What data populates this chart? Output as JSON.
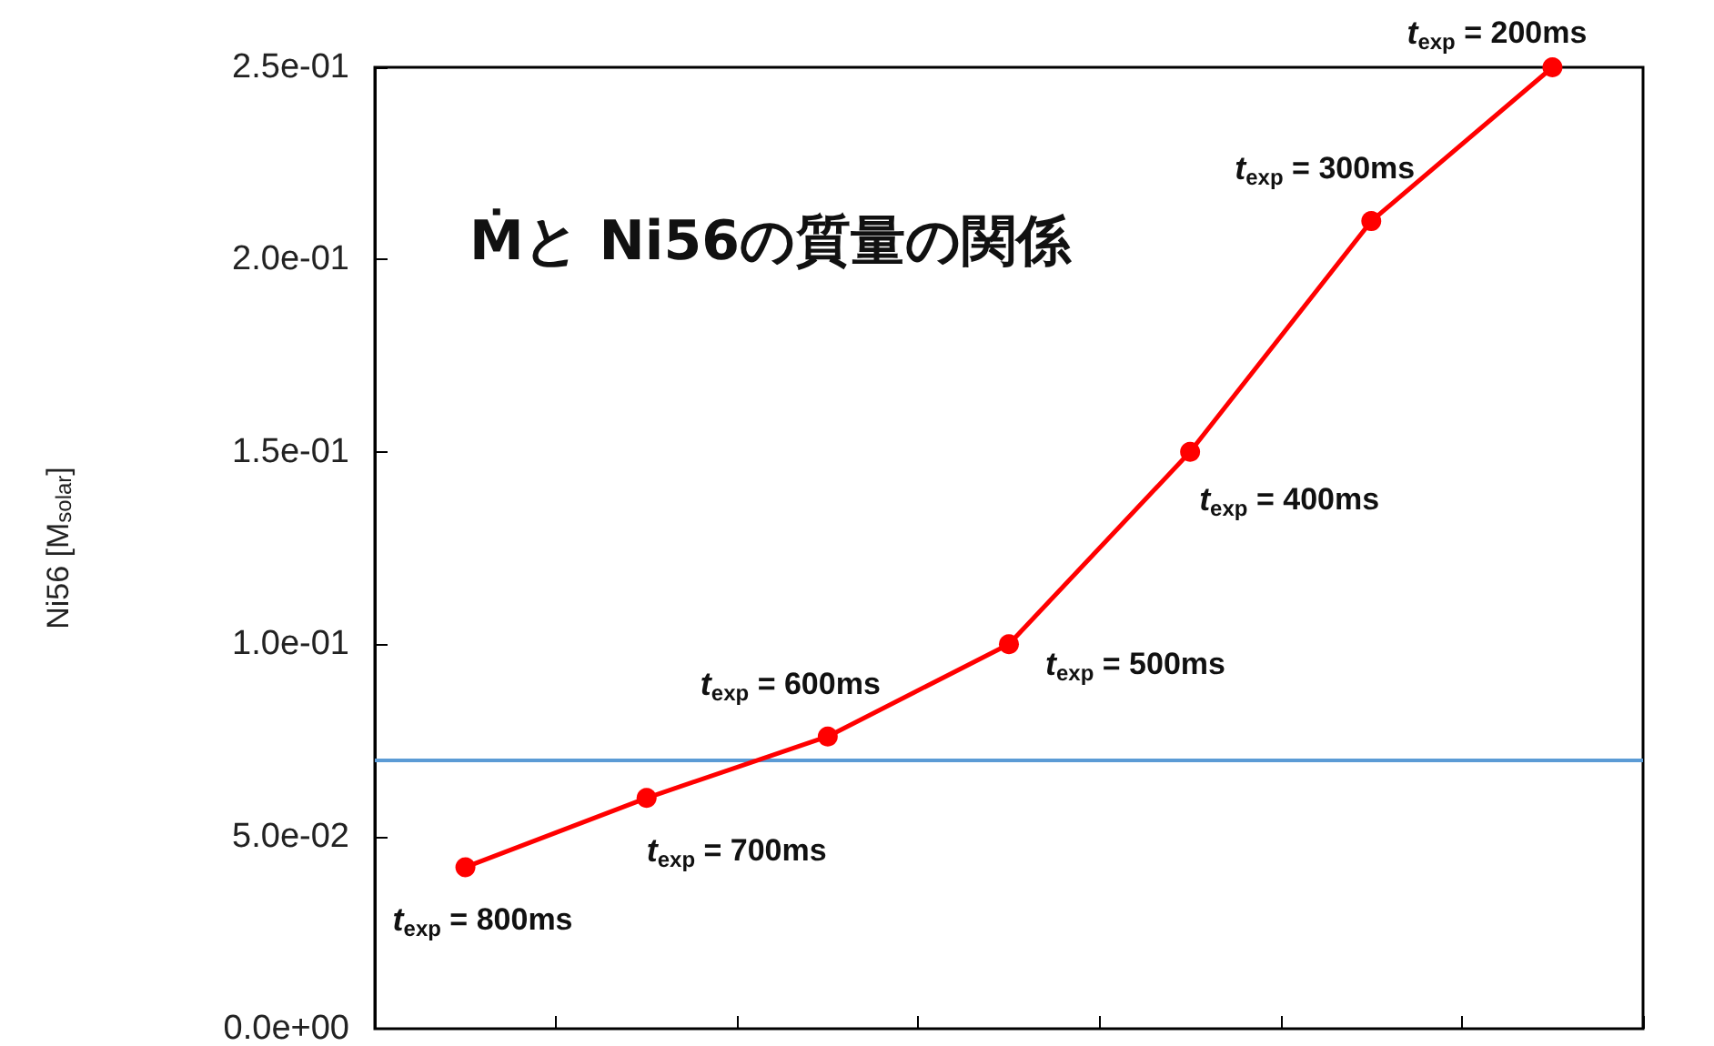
{
  "chart_data": {
    "type": "line",
    "ylabel": "Ni56 [M$_{solar}$]",
    "categories": [
      null,
      null,
      null,
      null,
      null,
      null,
      null
    ],
    "ylim": [
      0,
      0.25
    ],
    "yticks": [
      {
        "value": 0,
        "label": "0.0e+00"
      },
      {
        "value": 0.05,
        "label": "5.0e-02"
      },
      {
        "value": 0.1,
        "label": "1.0e-01"
      },
      {
        "value": 0.15,
        "label": "1.5e-01"
      },
      {
        "value": 0.2,
        "label": "2.0e-01"
      },
      {
        "value": 0.25,
        "label": "2.5e-01"
      }
    ],
    "tick_labels": "y",
    "series": [
      {
        "color": "#ff0000",
        "values": [
          0.042,
          0.06,
          0.076,
          0.1,
          0.15,
          0.21,
          0.25
        ]
      }
    ],
    "marker": "circle",
    "line_style": "solid",
    "ref_lines": [
      {
        "axis": "y",
        "value": 0.07,
        "color": "#5b9bd5"
      }
    ],
    "annotations": [
      "Ṁと Ni56の質量の関係",
      "t$_{exp}$ = 800ms",
      "t$_{exp}$ = 700ms",
      "t$_{exp}$ = 600ms",
      "t$_{exp}$ = 500ms",
      "t$_{exp}$ = 400ms",
      "t$_{exp}$ = 300ms",
      "t$_{exp}$ = 200ms"
    ]
  }
}
